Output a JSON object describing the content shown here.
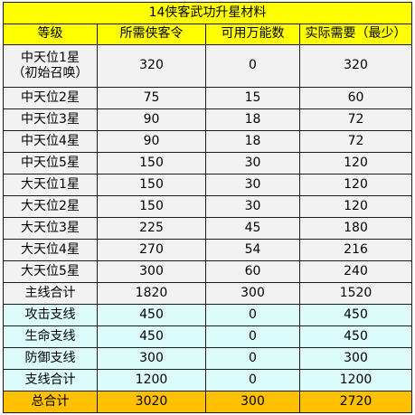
{
  "table": {
    "title": "14侠客武功升星材料",
    "headers": [
      "等级",
      "所需侠客令",
      "可用万能数",
      "实际需要（最少）"
    ],
    "rows": [
      {
        "level": [
          "中天位1星",
          "（初始召唤）"
        ],
        "required": "320",
        "universal": "0",
        "actual": "320",
        "kind": "star"
      },
      {
        "level": [
          "中天位2星"
        ],
        "required": "75",
        "universal": "15",
        "actual": "60",
        "kind": "star"
      },
      {
        "level": [
          "中天位3星"
        ],
        "required": "90",
        "universal": "18",
        "actual": "72",
        "kind": "star"
      },
      {
        "level": [
          "中天位4星"
        ],
        "required": "90",
        "universal": "18",
        "actual": "72",
        "kind": "star"
      },
      {
        "level": [
          "中天位5星"
        ],
        "required": "150",
        "universal": "30",
        "actual": "120",
        "kind": "star"
      },
      {
        "level": [
          "大天位1星"
        ],
        "required": "150",
        "universal": "30",
        "actual": "120",
        "kind": "star"
      },
      {
        "level": [
          "大天位2星"
        ],
        "required": "150",
        "universal": "30",
        "actual": "120",
        "kind": "star"
      },
      {
        "level": [
          "大天位3星"
        ],
        "required": "225",
        "universal": "45",
        "actual": "180",
        "kind": "star"
      },
      {
        "level": [
          "大天位4星"
        ],
        "required": "270",
        "universal": "54",
        "actual": "216",
        "kind": "star"
      },
      {
        "level": [
          "大天位5星"
        ],
        "required": "300",
        "universal": "60",
        "actual": "240",
        "kind": "star"
      },
      {
        "level": [
          "主线合计"
        ],
        "required": "1820",
        "universal": "300",
        "actual": "1520",
        "kind": "star"
      },
      {
        "level": [
          "攻击支线"
        ],
        "required": "450",
        "universal": "0",
        "actual": "450",
        "kind": "branch"
      },
      {
        "level": [
          "生命支线"
        ],
        "required": "450",
        "universal": "0",
        "actual": "450",
        "kind": "branch"
      },
      {
        "level": [
          "防御支线"
        ],
        "required": "300",
        "universal": "0",
        "actual": "300",
        "kind": "branch"
      },
      {
        "level": [
          "支线合计"
        ],
        "required": "1200",
        "universal": "0",
        "actual": "1200",
        "kind": "branch"
      },
      {
        "level": [
          "总合计"
        ],
        "required": "3020",
        "universal": "300",
        "actual": "2720",
        "kind": "total"
      }
    ]
  },
  "colors": {
    "title_bg": "#ffff00",
    "star_rows_bg": "#f2f2f2",
    "branch_rows_bg": "#dcfcfc",
    "total_row_bg": "#ffc000",
    "border": "#1a1a1a"
  }
}
